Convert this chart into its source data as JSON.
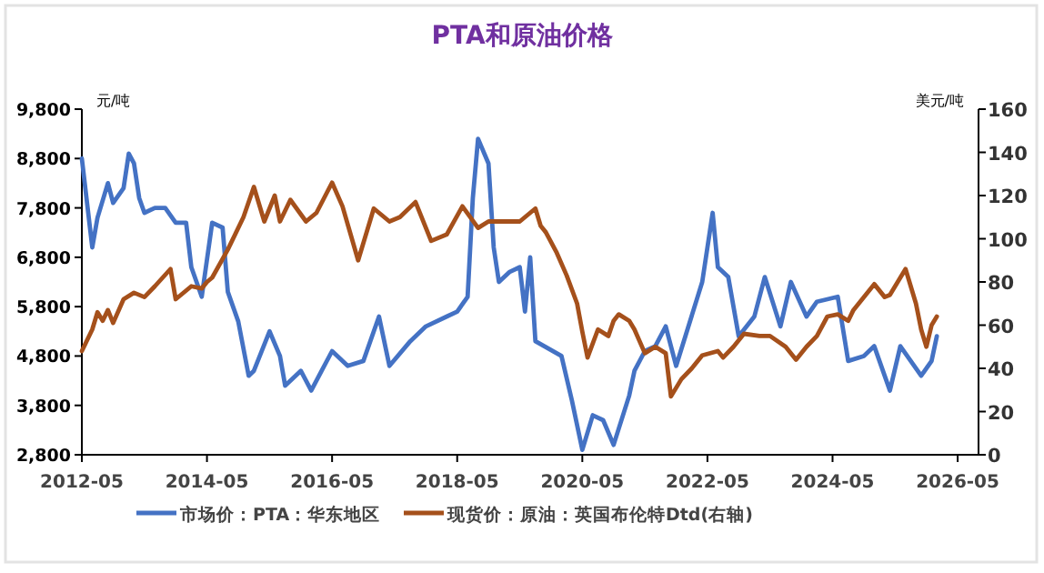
{
  "chart_data": {
    "type": "line",
    "title": "PTA和原油价格",
    "ylabel": "元/吨",
    "y2label": "美元/吨",
    "xlim": [
      "2012-05",
      "2026-09"
    ],
    "xticks": [
      "2012-05",
      "2014-05",
      "2016-05",
      "2018-05",
      "2020-05",
      "2022-05",
      "2024-05",
      "2026-05"
    ],
    "ylim": [
      2800,
      9800
    ],
    "yticks": [
      {
        "value": 2800,
        "label": "2,800"
      },
      {
        "value": 3800,
        "label": "3,800"
      },
      {
        "value": 4800,
        "label": "4,800"
      },
      {
        "value": 5800,
        "label": "5,800"
      },
      {
        "value": 6800,
        "label": "6,800"
      },
      {
        "value": 7800,
        "label": "7,800"
      },
      {
        "value": 8800,
        "label": "8,800"
      },
      {
        "value": 9800,
        "label": "9,800"
      }
    ],
    "y2lim": [
      0,
      160
    ],
    "y2ticks": [
      0,
      20,
      40,
      60,
      80,
      100,
      120,
      140,
      160
    ],
    "legend": "bottom",
    "grid": false,
    "marker": "none",
    "line_style": "solid",
    "series": [
      {
        "name": "市场价：PTA：华东地区",
        "color": "#4472c4",
        "x": [
          "2012-05",
          "2012-07",
          "2012-08",
          "2012-10",
          "2012-11",
          "2013-01",
          "2013-02",
          "2013-03",
          "2013-04",
          "2013-05",
          "2013-07",
          "2013-09",
          "2013-11",
          "2014-01",
          "2014-02",
          "2014-03",
          "2014-04",
          "2014-06",
          "2014-08",
          "2014-09",
          "2014-11",
          "2015-01",
          "2015-02",
          "2015-05",
          "2015-07",
          "2015-08",
          "2015-11",
          "2016-01",
          "2016-03",
          "2016-05",
          "2016-08",
          "2016-11",
          "2017-02",
          "2017-04",
          "2017-08",
          "2017-11",
          "2018-03",
          "2018-05",
          "2018-07",
          "2018-08",
          "2018-09",
          "2018-11",
          "2018-12",
          "2019-01",
          "2019-03",
          "2019-05",
          "2019-06",
          "2019-07",
          "2019-08",
          "2020-01",
          "2020-03",
          "2020-05",
          "2020-07",
          "2020-09",
          "2020-11",
          "2021-02",
          "2021-03",
          "2021-05",
          "2021-07",
          "2021-09",
          "2021-11",
          "2022-04",
          "2022-06",
          "2022-07",
          "2022-09",
          "2022-11",
          "2023-02",
          "2023-04",
          "2023-07",
          "2023-09",
          "2023-12",
          "2024-02",
          "2024-06",
          "2024-08",
          "2024-11",
          "2025-01",
          "2025-04",
          "2025-06",
          "2025-08",
          "2025-10",
          "2025-12",
          "2026-01"
        ],
        "values": [
          8800,
          7000,
          7600,
          8300,
          7900,
          8200,
          8900,
          8700,
          8000,
          7700,
          7800,
          7800,
          7500,
          7500,
          6600,
          6300,
          6000,
          7500,
          7400,
          6100,
          5500,
          4400,
          4500,
          5300,
          4800,
          4200,
          4500,
          4100,
          4500,
          4900,
          4600,
          4700,
          5600,
          4600,
          5100,
          5400,
          5600,
          5700,
          6000,
          8000,
          9200,
          8700,
          7000,
          6300,
          6500,
          6600,
          5700,
          6800,
          5100,
          4800,
          3900,
          2900,
          3600,
          3500,
          3000,
          4000,
          4500,
          4900,
          5000,
          5400,
          4600,
          6300,
          7700,
          6600,
          6400,
          5200,
          5600,
          6400,
          5400,
          6300,
          5600,
          5900,
          6000,
          4700,
          4800,
          5000,
          4100,
          5000,
          4700,
          4400,
          4700,
          5200
        ]
      },
      {
        "name": "现货价：原油：英国布伦特Dtd(右轴)",
        "color": "#a5501b",
        "axis": "y2",
        "x": [
          "2012-05",
          "2012-07",
          "2012-08",
          "2012-09",
          "2012-10",
          "2012-11",
          "2013-01",
          "2013-03",
          "2013-05",
          "2013-07",
          "2013-10",
          "2013-11",
          "2014-02",
          "2014-04",
          "2014-05",
          "2014-06",
          "2014-09",
          "2014-12",
          "2015-02",
          "2015-04",
          "2015-06",
          "2015-07",
          "2015-09",
          "2015-12",
          "2016-02",
          "2016-05",
          "2016-07",
          "2016-10",
          "2017-01",
          "2017-04",
          "2017-06",
          "2017-09",
          "2017-12",
          "2018-03",
          "2018-06",
          "2018-09",
          "2018-11",
          "2019-01",
          "2019-05",
          "2019-08",
          "2019-09",
          "2019-10",
          "2019-12",
          "2020-02",
          "2020-04",
          "2020-05",
          "2020-06",
          "2020-08",
          "2020-10",
          "2020-11",
          "2020-12",
          "2021-02",
          "2021-03",
          "2021-05",
          "2021-07",
          "2021-09",
          "2021-10",
          "2021-12",
          "2022-02",
          "2022-04",
          "2022-07",
          "2022-08",
          "2022-10",
          "2022-12",
          "2023-03",
          "2023-05",
          "2023-08",
          "2023-10",
          "2023-12",
          "2024-02",
          "2024-04",
          "2024-06",
          "2024-08",
          "2024-09",
          "2025-01",
          "2025-03",
          "2025-04",
          "2025-07",
          "2025-09",
          "2025-10",
          "2025-11",
          "2025-12",
          "2026-01"
        ],
        "values": [
          48,
          58,
          66,
          62,
          67,
          61,
          72,
          75,
          73,
          78,
          86,
          72,
          78,
          77,
          80,
          82,
          95,
          110,
          124,
          108,
          120,
          108,
          118,
          108,
          112,
          126,
          115,
          90,
          114,
          108,
          110,
          117,
          99,
          102,
          115,
          105,
          108,
          108,
          108,
          114,
          106,
          103,
          94,
          83,
          70,
          57,
          45,
          58,
          55,
          62,
          65,
          62,
          58,
          47,
          50,
          47,
          27,
          35,
          40,
          46,
          48,
          45,
          50,
          56,
          55,
          55,
          50,
          44,
          50,
          55,
          64,
          65,
          62,
          67,
          79,
          73,
          74,
          86,
          70,
          58,
          50,
          60,
          64
        ]
      }
    ]
  }
}
